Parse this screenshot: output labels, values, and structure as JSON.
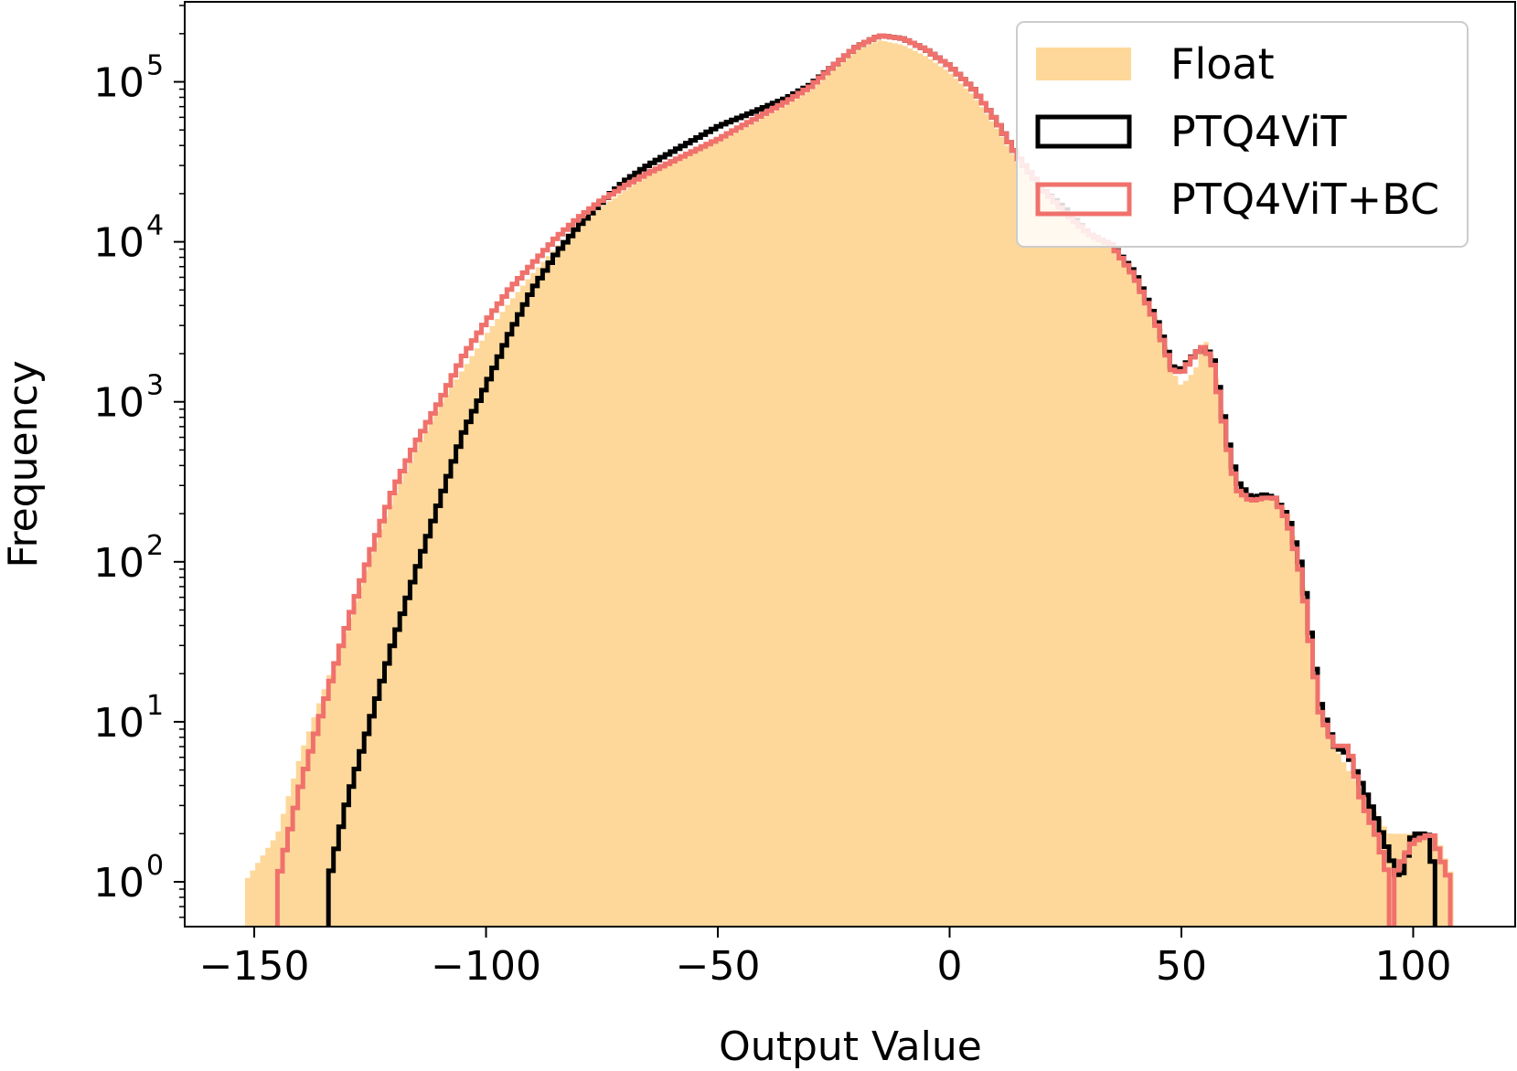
{
  "chart_data": {
    "type": "histogram",
    "xlabel": "Output Value",
    "ylabel": "Frequency",
    "xlim": [
      -165,
      122
    ],
    "ylim_log10": [
      -0.28,
      5.5
    ],
    "yscale": "log",
    "grid": false,
    "legend_position": "top-right",
    "x_ticks": [
      {
        "value": -150,
        "label": "−150"
      },
      {
        "value": -100,
        "label": "−100"
      },
      {
        "value": -50,
        "label": "−50"
      },
      {
        "value": 0,
        "label": "0"
      },
      {
        "value": 50,
        "label": "50"
      },
      {
        "value": 100,
        "label": "100"
      }
    ],
    "y_ticks": [
      {
        "exp": 0,
        "base": "10",
        "sup": "0"
      },
      {
        "exp": 1,
        "base": "10",
        "sup": "1"
      },
      {
        "exp": 2,
        "base": "10",
        "sup": "2"
      },
      {
        "exp": 3,
        "base": "10",
        "sup": "3"
      },
      {
        "exp": 4,
        "base": "10",
        "sup": "4"
      },
      {
        "exp": 5,
        "base": "10",
        "sup": "5"
      }
    ],
    "series": [
      {
        "name": "Float",
        "style": "filled",
        "color": "#fdd89a",
        "points": [
          [
            -152,
            0
          ],
          [
            -145,
            0.3
          ],
          [
            -140,
            0.8
          ],
          [
            -135,
            1.2
          ],
          [
            -130,
            1.6
          ],
          [
            -125,
            2.05
          ],
          [
            -120,
            2.4
          ],
          [
            -115,
            2.7
          ],
          [
            -110,
            2.98
          ],
          [
            -105,
            3.2
          ],
          [
            -100,
            3.42
          ],
          [
            -95,
            3.62
          ],
          [
            -90,
            3.8
          ],
          [
            -85,
            3.96
          ],
          [
            -80,
            4.1
          ],
          [
            -75,
            4.22
          ],
          [
            -70,
            4.32
          ],
          [
            -65,
            4.42
          ],
          [
            -60,
            4.5
          ],
          [
            -55,
            4.57
          ],
          [
            -50,
            4.63
          ],
          [
            -45,
            4.7
          ],
          [
            -40,
            4.78
          ],
          [
            -35,
            4.86
          ],
          [
            -30,
            4.95
          ],
          [
            -25,
            5.08
          ],
          [
            -20,
            5.2
          ],
          [
            -15,
            5.26
          ],
          [
            -10,
            5.23
          ],
          [
            -5,
            5.16
          ],
          [
            0,
            5.06
          ],
          [
            5,
            4.92
          ],
          [
            10,
            4.72
          ],
          [
            15,
            4.48
          ],
          [
            20,
            4.3
          ],
          [
            25,
            4.15
          ],
          [
            30,
            4.05
          ],
          [
            35,
            3.98
          ],
          [
            40,
            3.75
          ],
          [
            45,
            3.5
          ],
          [
            48,
            3.2
          ],
          [
            50,
            3.1
          ],
          [
            53,
            3.2
          ],
          [
            55,
            3.4
          ],
          [
            57,
            3.25
          ],
          [
            60,
            2.7
          ],
          [
            62,
            2.5
          ],
          [
            65,
            2.38
          ],
          [
            68,
            2.4
          ],
          [
            70,
            2.42
          ],
          [
            73,
            2.3
          ],
          [
            76,
            1.9
          ],
          [
            78,
            1.4
          ],
          [
            80,
            1.0
          ],
          [
            83,
            0.85
          ],
          [
            86,
            0.7
          ],
          [
            90,
            0.5
          ],
          [
            95,
            0.3
          ],
          [
            100,
            0.3
          ],
          [
            105,
            0.3
          ],
          [
            109,
            0
          ]
        ]
      },
      {
        "name": "PTQ4ViT",
        "style": "step",
        "color": "#000000",
        "points": [
          [
            -134,
            0
          ],
          [
            -130,
            0.5
          ],
          [
            -125,
            1.0
          ],
          [
            -120,
            1.5
          ],
          [
            -115,
            1.95
          ],
          [
            -110,
            2.38
          ],
          [
            -105,
            2.8
          ],
          [
            -100,
            3.1
          ],
          [
            -95,
            3.42
          ],
          [
            -90,
            3.7
          ],
          [
            -85,
            3.92
          ],
          [
            -80,
            4.1
          ],
          [
            -75,
            4.25
          ],
          [
            -70,
            4.38
          ],
          [
            -65,
            4.48
          ],
          [
            -60,
            4.56
          ],
          [
            -55,
            4.64
          ],
          [
            -50,
            4.72
          ],
          [
            -45,
            4.78
          ],
          [
            -40,
            4.84
          ],
          [
            -35,
            4.9
          ],
          [
            -30,
            4.98
          ],
          [
            -25,
            5.1
          ],
          [
            -20,
            5.22
          ],
          [
            -15,
            5.29
          ],
          [
            -10,
            5.27
          ],
          [
            -5,
            5.2
          ],
          [
            0,
            5.1
          ],
          [
            5,
            4.96
          ],
          [
            10,
            4.76
          ],
          [
            15,
            4.52
          ],
          [
            20,
            4.33
          ],
          [
            25,
            4.2
          ],
          [
            30,
            4.05
          ],
          [
            35,
            3.98
          ],
          [
            40,
            3.8
          ],
          [
            45,
            3.48
          ],
          [
            48,
            3.22
          ],
          [
            50,
            3.2
          ],
          [
            53,
            3.3
          ],
          [
            55,
            3.35
          ],
          [
            57,
            3.25
          ],
          [
            60,
            2.75
          ],
          [
            62,
            2.5
          ],
          [
            65,
            2.4
          ],
          [
            68,
            2.42
          ],
          [
            70,
            2.4
          ],
          [
            73,
            2.28
          ],
          [
            76,
            1.95
          ],
          [
            78,
            1.5
          ],
          [
            80,
            1.1
          ],
          [
            83,
            0.85
          ],
          [
            86,
            0.8
          ],
          [
            89,
            0.6
          ],
          [
            92,
            0.4
          ],
          [
            97,
            0
          ],
          [
            100,
            0.3
          ],
          [
            103,
            0.3
          ],
          [
            105,
            0
          ],
          [
            107,
            0
          ]
        ]
      },
      {
        "name": "PTQ4ViT+BC",
        "style": "step",
        "color": "#f0716c",
        "points": [
          [
            -145,
            0
          ],
          [
            -140,
            0.6
          ],
          [
            -135,
            1.1
          ],
          [
            -130,
            1.6
          ],
          [
            -125,
            2.05
          ],
          [
            -120,
            2.45
          ],
          [
            -115,
            2.75
          ],
          [
            -110,
            3.0
          ],
          [
            -105,
            3.28
          ],
          [
            -100,
            3.5
          ],
          [
            -95,
            3.7
          ],
          [
            -90,
            3.86
          ],
          [
            -85,
            4.02
          ],
          [
            -80,
            4.15
          ],
          [
            -75,
            4.26
          ],
          [
            -70,
            4.35
          ],
          [
            -65,
            4.43
          ],
          [
            -60,
            4.5
          ],
          [
            -55,
            4.57
          ],
          [
            -50,
            4.64
          ],
          [
            -45,
            4.72
          ],
          [
            -40,
            4.8
          ],
          [
            -35,
            4.88
          ],
          [
            -30,
            4.97
          ],
          [
            -25,
            5.1
          ],
          [
            -20,
            5.22
          ],
          [
            -15,
            5.29
          ],
          [
            -10,
            5.27
          ],
          [
            -5,
            5.2
          ],
          [
            0,
            5.1
          ],
          [
            5,
            4.96
          ],
          [
            10,
            4.76
          ],
          [
            15,
            4.52
          ],
          [
            20,
            4.33
          ],
          [
            25,
            4.18
          ],
          [
            30,
            4.05
          ],
          [
            35,
            3.98
          ],
          [
            40,
            3.78
          ],
          [
            45,
            3.46
          ],
          [
            48,
            3.2
          ],
          [
            50,
            3.18
          ],
          [
            53,
            3.3
          ],
          [
            55,
            3.35
          ],
          [
            57,
            3.22
          ],
          [
            60,
            2.72
          ],
          [
            62,
            2.45
          ],
          [
            65,
            2.38
          ],
          [
            68,
            2.4
          ],
          [
            70,
            2.4
          ],
          [
            73,
            2.25
          ],
          [
            76,
            1.9
          ],
          [
            78,
            1.45
          ],
          [
            80,
            1.05
          ],
          [
            83,
            0.85
          ],
          [
            86,
            0.85
          ],
          [
            89,
            0.5
          ],
          [
            92,
            0.3
          ],
          [
            95,
            0
          ],
          [
            100,
            0.25
          ],
          [
            104,
            0.3
          ],
          [
            108,
            0
          ]
        ]
      }
    ],
    "legend": [
      {
        "label": "Float",
        "style": "filled",
        "color": "#fdd89a"
      },
      {
        "label": "PTQ4ViT",
        "style": "outline",
        "color": "#000000"
      },
      {
        "label": "PTQ4ViT+BC",
        "style": "outline",
        "color": "#f0716c"
      }
    ]
  }
}
